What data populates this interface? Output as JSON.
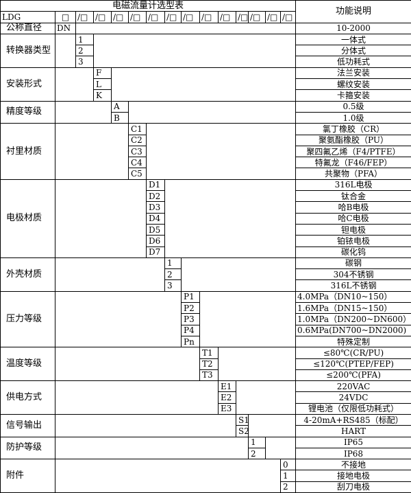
{
  "title": "电磁流量计选型表",
  "desc_header": "功能说明",
  "model_row": {
    "prefix": "LDG",
    "first": "□",
    "slots": [
      "/□",
      "/□",
      "/□",
      "/□",
      "/□",
      "/□",
      "/□",
      "/□",
      "/□",
      "/□",
      "/□",
      "/□",
      "/□"
    ]
  },
  "nominal": {
    "label": "公称直径",
    "code": "DN",
    "desc": "10-2000"
  },
  "groups": [
    {
      "label": "转换器类型",
      "col": 2,
      "items": [
        {
          "code": "1",
          "desc": "一体式"
        },
        {
          "code": "2",
          "desc": "分体式"
        },
        {
          "code": "3",
          "desc": "低功耗式"
        }
      ]
    },
    {
      "label": "安装形式",
      "col": 3,
      "items": [
        {
          "code": "F",
          "desc": "法兰安装"
        },
        {
          "code": "L",
          "desc": "螺纹安装"
        },
        {
          "code": "K",
          "desc": "卡箍安装"
        }
      ]
    },
    {
      "label": "精度等级",
      "col": 4,
      "items": [
        {
          "code": "A",
          "desc": "0.5级"
        },
        {
          "code": "B",
          "desc": "1.0级"
        }
      ]
    },
    {
      "label": "衬里材质",
      "col": 5,
      "items": [
        {
          "code": "C1",
          "desc": "氯丁橡胶（CR）"
        },
        {
          "code": "C2",
          "desc": "聚氨酯橡胶（PU）"
        },
        {
          "code": "C3",
          "desc": "聚四氟乙烯（F4/PTFE）"
        },
        {
          "code": "C4",
          "desc": "特氟龙（F46/FEP）"
        },
        {
          "code": "C5",
          "desc": "共聚物（PFA）"
        }
      ]
    },
    {
      "label": "电极材质",
      "col": 6,
      "items": [
        {
          "code": "D1",
          "desc": "316L电极"
        },
        {
          "code": "D2",
          "desc": "钛合金"
        },
        {
          "code": "D3",
          "desc": "哈B电极"
        },
        {
          "code": "D4",
          "desc": "哈C电极"
        },
        {
          "code": "D5",
          "desc": "钽电极"
        },
        {
          "code": "D6",
          "desc": "铂铱电极"
        },
        {
          "code": "D7",
          "desc": "碳化钨"
        }
      ]
    },
    {
      "label": "外壳材质",
      "col": 7,
      "items": [
        {
          "code": "1",
          "desc": "碳钢"
        },
        {
          "code": "2",
          "desc": "304不锈钢"
        },
        {
          "code": "3",
          "desc": "316L不锈钢"
        }
      ]
    },
    {
      "label": "压力等级",
      "col": 8,
      "left": true,
      "items": [
        {
          "code": "P1",
          "desc": "4.0MPa（DN10~150）"
        },
        {
          "code": "P2",
          "desc": "1.6MPa（DN15~150）"
        },
        {
          "code": "P3",
          "desc": "1.0MPa（DN200~DN600）"
        },
        {
          "code": "P4",
          "desc": "0.6MPa(DN700~DN2000)"
        },
        {
          "code": "Pn",
          "desc": "特殊定制",
          "center": true
        }
      ]
    },
    {
      "label": "温度等级",
      "col": 9,
      "items": [
        {
          "code": "T1",
          "desc": "≤80℃(CR/PU)"
        },
        {
          "code": "T2",
          "desc": "≤120℃(PTEP/FEP)"
        },
        {
          "code": "T3",
          "desc": "≤200℃(PFA)"
        }
      ]
    },
    {
      "label": "供电方式",
      "col": 10,
      "items": [
        {
          "code": "E1",
          "desc": "220VAC"
        },
        {
          "code": "E2",
          "desc": "24VDC"
        },
        {
          "code": "E3",
          "desc": "锂电池（仅限低功耗式）"
        }
      ]
    },
    {
      "label": "信号输出",
      "col": 11,
      "items": [
        {
          "code": "S1",
          "desc": "4-20mA+RS485（标配）"
        },
        {
          "code": "S2",
          "desc": "HART"
        }
      ]
    },
    {
      "label": "防护等级",
      "col": 12,
      "items": [
        {
          "code": "1",
          "desc": "IP65"
        },
        {
          "code": "2",
          "desc": "IP68"
        }
      ]
    },
    {
      "label": "附件",
      "col": 14,
      "items": [
        {
          "code": "0",
          "desc": "不接地"
        },
        {
          "code": "1",
          "desc": "接地电极"
        },
        {
          "code": "2",
          "desc": "刮刀电极"
        }
      ]
    }
  ]
}
